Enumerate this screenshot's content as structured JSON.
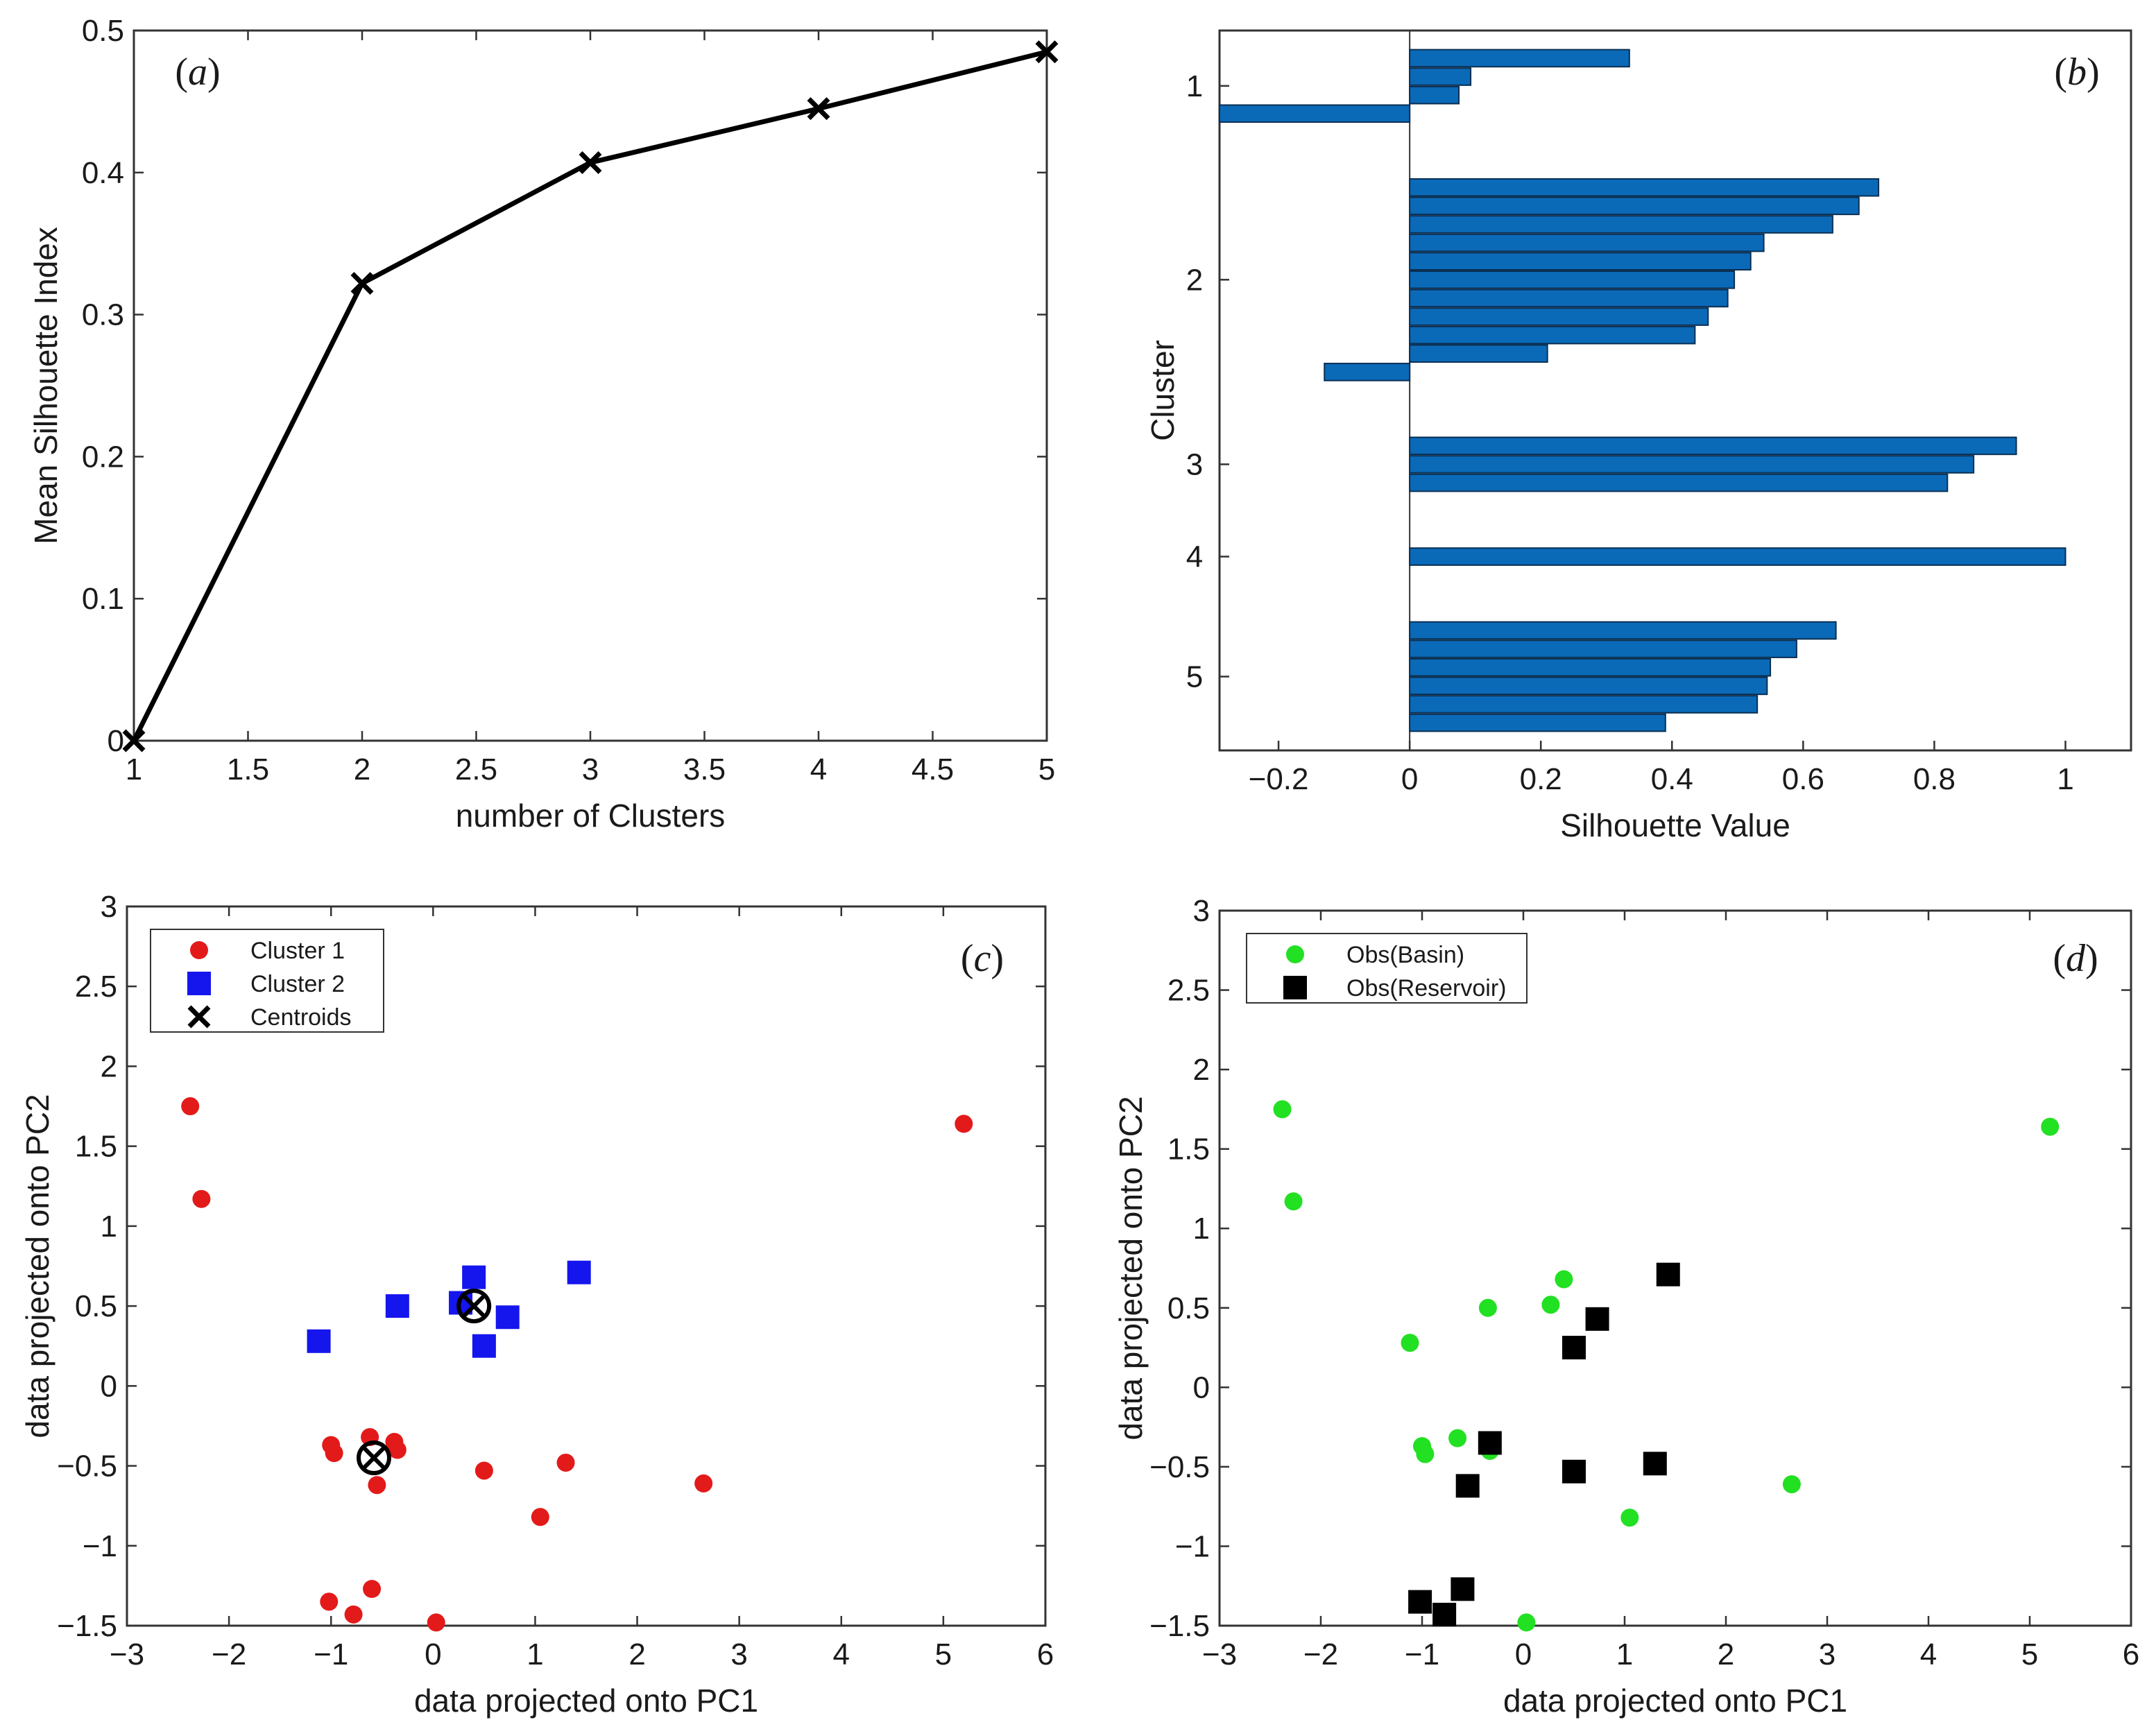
{
  "chart_data": [
    {
      "id": "a",
      "type": "line",
      "panel_label": "a",
      "xlabel": "number of Clusters",
      "ylabel": "Mean Silhouette Index",
      "xlim": [
        1,
        5
      ],
      "ylim": [
        0,
        0.5
      ],
      "xticks": [
        1,
        1.5,
        2,
        2.5,
        3,
        3.5,
        4,
        4.5,
        5
      ],
      "xtick_labels": [
        "1",
        "1.5",
        "2",
        "2.5",
        "3",
        "3.5",
        "4",
        "4.5",
        "5"
      ],
      "yticks": [
        0,
        0.1,
        0.2,
        0.3,
        0.4,
        0.5
      ],
      "ytick_labels": [
        "0",
        "0.1",
        "0.2",
        "0.3",
        "0.4",
        "0.5"
      ],
      "x": [
        1,
        2,
        3,
        4,
        5
      ],
      "y": [
        0,
        0.322,
        0.407,
        0.445,
        0.485
      ],
      "marker": "x",
      "color": "#000000"
    },
    {
      "id": "b",
      "type": "bar",
      "orientation": "horizontal",
      "panel_label": "b",
      "xlabel": "Silhouette Value",
      "ylabel": "Cluster",
      "xlim": [
        -0.29,
        1.1
      ],
      "xticks": [
        -0.2,
        0,
        0.2,
        0.4,
        0.6,
        0.8,
        1
      ],
      "xtick_labels": [
        "−0.2",
        "0",
        "0.2",
        "0.4",
        "0.6",
        "0.8",
        "1"
      ],
      "ytick_labels": [
        "1",
        "2",
        "3",
        "4",
        "5"
      ],
      "color": "#0b6ab8",
      "edge_color": "#0a2f52",
      "groups": [
        {
          "cluster": "1",
          "values": [
            0.335,
            0.093,
            0.075,
            -0.29
          ]
        },
        {
          "cluster": "2",
          "values": [
            0.715,
            0.685,
            0.645,
            0.54,
            0.52,
            0.495,
            0.485,
            0.455,
            0.435,
            0.21,
            -0.13
          ]
        },
        {
          "cluster": "3",
          "values": [
            0.925,
            0.86,
            0.82
          ]
        },
        {
          "cluster": "4",
          "values": [
            1.0
          ]
        },
        {
          "cluster": "5",
          "values": [
            0.65,
            0.59,
            0.55,
            0.545,
            0.53,
            0.39
          ]
        }
      ]
    },
    {
      "id": "c",
      "type": "scatter",
      "panel_label": "c",
      "xlabel": "data projected onto PC1",
      "ylabel": "data projected onto PC2",
      "xlim": [
        -3,
        6
      ],
      "ylim": [
        -1.5,
        3
      ],
      "xticks": [
        -3,
        -2,
        -1,
        0,
        1,
        2,
        3,
        4,
        5,
        6
      ],
      "xtick_labels": [
        "−3",
        "−2",
        "−1",
        "0",
        "1",
        "2",
        "3",
        "4",
        "5",
        "6"
      ],
      "yticks": [
        -1.5,
        -1,
        -0.5,
        0,
        0.5,
        1,
        1.5,
        2,
        2.5,
        3
      ],
      "ytick_labels": [
        "−1.5",
        "−1",
        "−0.5",
        "0",
        "0.5",
        "1",
        "1.5",
        "2",
        "2.5",
        "3"
      ],
      "legend_position": "top-left",
      "series": [
        {
          "name": "Cluster 1",
          "marker": "circle",
          "color": "#e31a1a",
          "x": [
            -2.38,
            -2.27,
            5.2,
            -1.0,
            -0.97,
            -0.62,
            -0.38,
            -0.35,
            -0.55,
            0.5,
            1.3,
            2.65,
            1.05,
            -1.02,
            -0.6,
            -0.78,
            0.03
          ],
          "y": [
            1.75,
            1.17,
            1.64,
            -0.37,
            -0.42,
            -0.32,
            -0.35,
            -0.4,
            -0.62,
            -0.53,
            -0.48,
            -0.61,
            -0.82,
            -1.35,
            -1.27,
            -1.43,
            -1.48
          ]
        },
        {
          "name": "Cluster 2",
          "marker": "square",
          "color": "#1515ee",
          "x": [
            -1.12,
            -0.35,
            0.27,
            0.4,
            0.73,
            0.5,
            1.43
          ],
          "y": [
            0.28,
            0.5,
            0.52,
            0.68,
            0.43,
            0.25,
            0.71
          ]
        },
        {
          "name": "Centroids",
          "marker": "x-circle",
          "color": "#000000",
          "x": [
            0.4,
            -0.58
          ],
          "y": [
            0.5,
            -0.45
          ]
        }
      ]
    },
    {
      "id": "d",
      "type": "scatter",
      "panel_label": "d",
      "xlabel": "data projected onto PC1",
      "ylabel": "data projected onto PC2",
      "xlim": [
        -3,
        6
      ],
      "ylim": [
        -1.5,
        3
      ],
      "xticks": [
        -3,
        -2,
        -1,
        0,
        1,
        2,
        3,
        4,
        5,
        6
      ],
      "xtick_labels": [
        "−3",
        "−2",
        "−1",
        "0",
        "1",
        "2",
        "3",
        "4",
        "5",
        "6"
      ],
      "yticks": [
        -1.5,
        -1,
        -0.5,
        0,
        0.5,
        1,
        1.5,
        2,
        2.5,
        3
      ],
      "ytick_labels": [
        "−1.5",
        "−1",
        "−0.5",
        "0",
        "0.5",
        "1",
        "1.5",
        "2",
        "2.5",
        "3"
      ],
      "legend_position": "top-left",
      "series": [
        {
          "name": "Obs(Basin)",
          "marker": "circle",
          "color": "#22e022",
          "x": [
            -2.38,
            -2.27,
            5.2,
            -1.12,
            -0.35,
            0.27,
            0.4,
            -1.0,
            -0.97,
            -0.65,
            -0.33,
            2.65,
            1.05,
            0.03
          ],
          "y": [
            1.75,
            1.17,
            1.64,
            0.28,
            0.5,
            0.52,
            0.68,
            -0.37,
            -0.42,
            -0.32,
            -0.4,
            -0.61,
            -0.82,
            -1.48
          ]
        },
        {
          "name": "Obs(Reservoir)",
          "marker": "square",
          "color": "#000000",
          "x": [
            1.43,
            0.73,
            0.5,
            -0.33,
            -0.55,
            0.5,
            1.3,
            -1.02,
            -0.6,
            -0.78
          ],
          "y": [
            0.71,
            0.43,
            0.25,
            -0.35,
            -0.62,
            -0.53,
            -0.48,
            -1.35,
            -1.27,
            -1.43
          ]
        }
      ]
    }
  ]
}
